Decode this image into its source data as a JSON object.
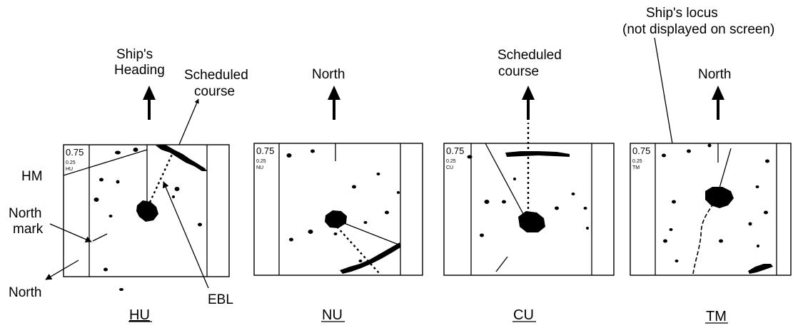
{
  "panels": [
    {
      "id": "hu",
      "caption": "HU",
      "range": "0.75",
      "ring": "0.25",
      "mode": "HU",
      "top_label": [
        "Ship's",
        "Heading"
      ],
      "callouts": {
        "scheduled_course": [
          "Scheduled",
          "course"
        ],
        "hm": "HM",
        "north_mark": [
          "North",
          "mark"
        ],
        "north": "North",
        "ebl": "EBL"
      }
    },
    {
      "id": "nu",
      "caption": "NU",
      "range": "0.75",
      "ring": "0.25",
      "mode": "NU",
      "top_label": [
        "North"
      ]
    },
    {
      "id": "cu",
      "caption": "CU",
      "range": "0.75",
      "ring": "0.25",
      "mode": "CU",
      "top_label": [
        "Scheduled",
        "course"
      ]
    },
    {
      "id": "tm",
      "caption": "TM",
      "range": "0.75",
      "ring": "0.25",
      "mode": "TM",
      "top_label": [
        "North"
      ],
      "callouts": {
        "locus": [
          "Ship's locus",
          "(not displayed on screen)"
        ]
      }
    }
  ]
}
